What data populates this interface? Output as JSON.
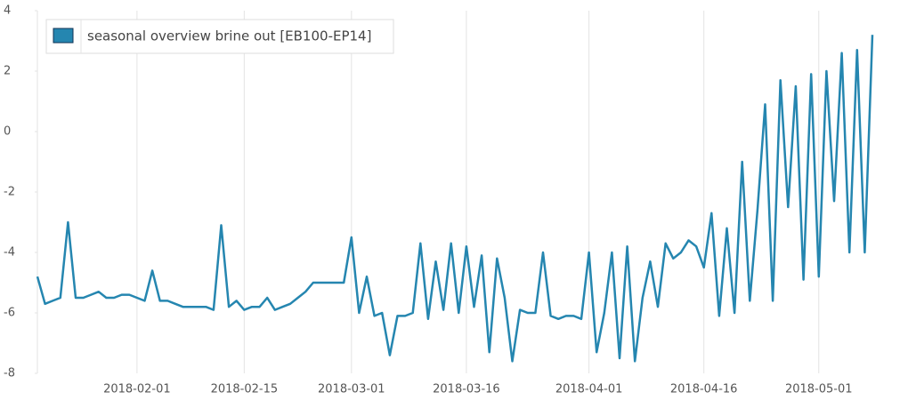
{
  "chart_data": {
    "type": "line",
    "legend": "upper left",
    "grid": true,
    "series": [
      {
        "name": "seasonal overview brine out [EB100-EP14]",
        "color": "#2586b0",
        "values": [
          -4.8,
          -5.7,
          -5.6,
          -5.5,
          -3.0,
          -5.5,
          -5.5,
          -5.4,
          -5.3,
          -5.5,
          -5.5,
          -5.4,
          -5.4,
          -5.5,
          -5.6,
          -4.6,
          -5.6,
          -5.6,
          -5.7,
          -5.8,
          -5.8,
          -5.8,
          -5.8,
          -5.9,
          -3.1,
          -5.8,
          -5.6,
          -5.9,
          -5.8,
          -5.8,
          -5.5,
          -5.9,
          -5.8,
          -5.7,
          -5.5,
          -5.3,
          -5.0,
          -5.0,
          -5.0,
          -5.0,
          -5.0,
          -3.5,
          -6.0,
          -4.8,
          -6.1,
          -6.0,
          -7.4,
          -6.1,
          -6.1,
          -6.0,
          -3.7,
          -6.2,
          -4.3,
          -5.9,
          -3.7,
          -6.0,
          -3.8,
          -5.8,
          -4.1,
          -7.3,
          -4.2,
          -5.5,
          -7.6,
          -5.9,
          -6.0,
          -6.0,
          -4.0,
          -6.1,
          -6.2,
          -6.1,
          -6.1,
          -6.2,
          -4.0,
          -7.3,
          -6.0,
          -4.0,
          -7.5,
          -3.8,
          -7.6,
          -5.5,
          -4.3,
          -5.8,
          -3.7,
          -4.2,
          -4.0,
          -3.6,
          -3.8,
          -4.5,
          -2.7,
          -6.1,
          -3.2,
          -6.0,
          -1.0,
          -5.6,
          -2.6,
          0.9,
          -5.6,
          1.7,
          -2.5,
          1.5,
          -4.9,
          1.9,
          -4.8,
          2.0,
          -2.3,
          2.6,
          -4.0,
          2.7,
          -4.0,
          3.2
        ]
      }
    ],
    "x": [
      "2018-01-19",
      "2018-01-20",
      "2018-01-21",
      "2018-01-22",
      "2018-01-23",
      "2018-01-24",
      "2018-01-25",
      "2018-01-26",
      "2018-01-27",
      "2018-01-28",
      "2018-01-29",
      "2018-01-30",
      "2018-01-31",
      "2018-02-01",
      "2018-02-02",
      "2018-02-03",
      "2018-02-04",
      "2018-02-05",
      "2018-02-06",
      "2018-02-07",
      "2018-02-08",
      "2018-02-09",
      "2018-02-10",
      "2018-02-11",
      "2018-02-12",
      "2018-02-13",
      "2018-02-14",
      "2018-02-15",
      "2018-02-16",
      "2018-02-17",
      "2018-02-18",
      "2018-02-19",
      "2018-02-20",
      "2018-02-21",
      "2018-02-22",
      "2018-02-23",
      "2018-02-24",
      "2018-02-25",
      "2018-02-26",
      "2018-02-27",
      "2018-02-28",
      "2018-03-01",
      "2018-03-02",
      "2018-03-03",
      "2018-03-04",
      "2018-03-05",
      "2018-03-06",
      "2018-03-07",
      "2018-03-08",
      "2018-03-09",
      "2018-03-10",
      "2018-03-11",
      "2018-03-12",
      "2018-03-13",
      "2018-03-14",
      "2018-03-15",
      "2018-03-16",
      "2018-03-17",
      "2018-03-18",
      "2018-03-19",
      "2018-03-20",
      "2018-03-21",
      "2018-03-22",
      "2018-03-23",
      "2018-03-24",
      "2018-03-25",
      "2018-03-26",
      "2018-03-27",
      "2018-03-28",
      "2018-03-29",
      "2018-03-30",
      "2018-03-31",
      "2018-04-01",
      "2018-04-02",
      "2018-04-03",
      "2018-04-04",
      "2018-04-05",
      "2018-04-06",
      "2018-04-07",
      "2018-04-08",
      "2018-04-09",
      "2018-04-10",
      "2018-04-11",
      "2018-04-12",
      "2018-04-13",
      "2018-04-14",
      "2018-04-15",
      "2018-04-16",
      "2018-04-17",
      "2018-04-18",
      "2018-04-19",
      "2018-04-20",
      "2018-04-21",
      "2018-04-22",
      "2018-04-23",
      "2018-04-24",
      "2018-04-25",
      "2018-04-26",
      "2018-04-27",
      "2018-04-28",
      "2018-04-29",
      "2018-04-30",
      "2018-05-01",
      "2018-05-02",
      "2018-05-03",
      "2018-05-04",
      "2018-05-05",
      "2018-05-06",
      "2018-05-07",
      "2018-05-08"
    ],
    "xlim": [
      "2018-01-19",
      "2018-05-08"
    ],
    "xticks": [
      "2018-02-01",
      "2018-02-15",
      "2018-03-01",
      "2018-03-16",
      "2018-04-01",
      "2018-04-16",
      "2018-05-01"
    ],
    "ylim": [
      -8,
      4
    ],
    "yticks": [
      -8,
      -6,
      -4,
      -2,
      0,
      2,
      4
    ]
  }
}
